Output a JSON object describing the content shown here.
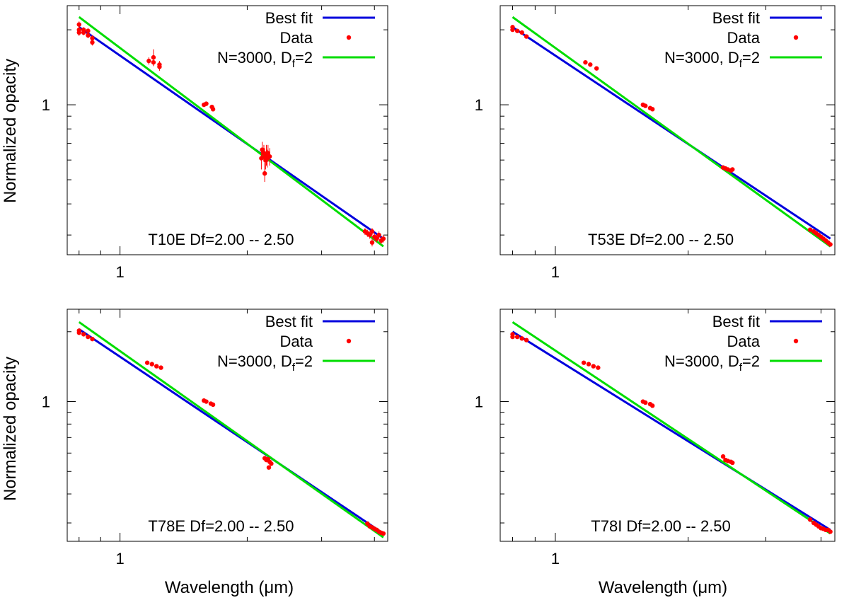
{
  "figure": {
    "ylabel": "Normalized opacity",
    "xlabel": "Wavelength (μm)",
    "colors": {
      "fit": "#0000dd",
      "data": "#ff0000",
      "model": "#00dd00",
      "axis": "#000000"
    }
  },
  "chart_data": [
    {
      "type": "line",
      "title": "T10E",
      "annotation": "T10E Df=2.00 -- 2.50",
      "xscale": "log",
      "yscale": "log",
      "xlim": [
        0.75,
        4.3
      ],
      "ylim": [
        0.25,
        2.5
      ],
      "xticks": [
        1
      ],
      "xtick_labels": [
        "1"
      ],
      "yticks": [
        1
      ],
      "ytick_labels": [
        "1"
      ],
      "xlabel": "",
      "ylabel": "Normalized opacity",
      "legend": {
        "position": "top-right",
        "entries": [
          "Best fit",
          "Data",
          "N=3000, D",
          "f",
          "=2"
        ]
      },
      "series": [
        {
          "name": "Best fit",
          "style": "line",
          "x": [
            0.8,
            4.2
          ],
          "y": [
            2.05,
            0.29
          ]
        },
        {
          "name": "N=3000, Df=2",
          "style": "line",
          "x": [
            0.8,
            4.2
          ],
          "y": [
            2.25,
            0.27
          ]
        },
        {
          "name": "Data",
          "style": "points",
          "x": [
            0.8,
            0.8,
            0.8,
            0.82,
            0.82,
            0.84,
            0.84,
            0.86,
            0.86,
            1.17,
            1.2,
            1.2,
            1.24,
            1.24,
            1.58,
            1.6,
            1.65,
            1.66,
            2.16,
            2.17,
            2.19,
            2.2,
            2.21,
            2.22,
            2.23,
            2.24,
            2.26,
            2.2,
            3.8,
            3.85,
            3.9,
            3.95,
            4.0,
            4.05,
            4.1,
            4.15,
            4.2,
            3.95
          ],
          "y": [
            2.1,
            2.0,
            1.95,
            2.0,
            1.95,
            1.98,
            1.9,
            1.85,
            1.78,
            1.5,
            1.55,
            1.48,
            1.45,
            1.42,
            1.0,
            1.01,
            0.98,
            0.96,
            0.61,
            0.66,
            0.64,
            0.62,
            0.6,
            0.63,
            0.61,
            0.64,
            0.62,
            0.53,
            0.31,
            0.305,
            0.3,
            0.31,
            0.295,
            0.29,
            0.3,
            0.285,
            0.29,
            0.28
          ],
          "yerr": [
            0.06,
            0.06,
            0.06,
            0.05,
            0.05,
            0.05,
            0.05,
            0.05,
            0.05,
            0.05,
            0.12,
            0.05,
            0.05,
            0.05,
            0.02,
            0.02,
            0.02,
            0.02,
            0.06,
            0.05,
            0.05,
            0.05,
            0.05,
            0.06,
            0.05,
            0.05,
            0.05,
            0.04,
            0.01,
            0.01,
            0.01,
            0.01,
            0.01,
            0.01,
            0.01,
            0.01,
            0.01,
            0.01
          ]
        }
      ]
    },
    {
      "type": "line",
      "title": "T53E",
      "annotation": "T53E Df=2.00 -- 2.50",
      "xscale": "log",
      "yscale": "log",
      "xlim": [
        0.75,
        4.3
      ],
      "ylim": [
        0.25,
        2.5
      ],
      "xticks": [
        1
      ],
      "xtick_labels": [
        "1"
      ],
      "yticks": [
        1
      ],
      "ytick_labels": [
        "1"
      ],
      "xlabel": "",
      "ylabel": "",
      "legend": {
        "position": "top-right",
        "entries": [
          "Best fit",
          "Data",
          "N=3000, D",
          "f",
          "=2"
        ]
      },
      "series": [
        {
          "name": "Best fit",
          "style": "line",
          "x": [
            0.8,
            4.2
          ],
          "y": [
            2.05,
            0.29
          ]
        },
        {
          "name": "N=3000, Df=2",
          "style": "line",
          "x": [
            0.8,
            4.2
          ],
          "y": [
            2.25,
            0.27
          ]
        },
        {
          "name": "Data",
          "style": "points",
          "x": [
            0.8,
            0.8,
            0.82,
            0.84,
            0.86,
            1.17,
            1.2,
            1.24,
            1.58,
            1.6,
            1.64,
            1.66,
            2.4,
            2.43,
            2.46,
            2.5,
            2.52,
            3.78,
            3.85,
            3.9,
            3.95,
            4.0,
            4.05,
            4.1,
            4.15,
            4.2
          ],
          "y": [
            2.05,
            2.0,
            1.98,
            1.95,
            1.88,
            1.48,
            1.45,
            1.4,
            1.0,
            0.99,
            0.97,
            0.96,
            0.56,
            0.555,
            0.55,
            0.545,
            0.55,
            0.315,
            0.31,
            0.305,
            0.3,
            0.295,
            0.29,
            0.285,
            0.28,
            0.275
          ],
          "yerr": []
        }
      ]
    },
    {
      "type": "line",
      "title": "T78E",
      "annotation": "T78E Df=2.00 -- 2.50",
      "xscale": "log",
      "yscale": "log",
      "xlim": [
        0.75,
        4.3
      ],
      "ylim": [
        0.25,
        2.5
      ],
      "xticks": [
        1
      ],
      "xtick_labels": [
        "1"
      ],
      "yticks": [
        1
      ],
      "ytick_labels": [
        "1"
      ],
      "xlabel": "Wavelength (μm)",
      "ylabel": "Normalized opacity",
      "legend": {
        "position": "top-right",
        "entries": [
          "Best fit",
          "Data",
          "N=3000, D",
          "f",
          "=2"
        ]
      },
      "series": [
        {
          "name": "Best fit",
          "style": "line",
          "x": [
            0.8,
            4.2
          ],
          "y": [
            2.05,
            0.27
          ]
        },
        {
          "name": "N=3000, Df=2",
          "style": "line",
          "x": [
            0.8,
            4.2
          ],
          "y": [
            2.2,
            0.26
          ]
        },
        {
          "name": "Data",
          "style": "points",
          "x": [
            0.8,
            0.8,
            0.82,
            0.84,
            0.86,
            1.16,
            1.19,
            1.22,
            1.25,
            1.58,
            1.6,
            1.64,
            1.66,
            2.2,
            2.22,
            2.24,
            2.26,
            2.28,
            2.25,
            3.85,
            3.9,
            3.95,
            4.0,
            4.05,
            4.1,
            4.15,
            4.2
          ],
          "y": [
            2.02,
            1.98,
            1.95,
            1.9,
            1.86,
            1.47,
            1.45,
            1.42,
            1.4,
            1.01,
            1.0,
            0.98,
            0.97,
            0.57,
            0.56,
            0.565,
            0.55,
            0.54,
            0.52,
            0.298,
            0.29,
            0.287,
            0.283,
            0.28,
            0.275,
            0.272,
            0.27
          ],
          "yerr": []
        }
      ]
    },
    {
      "type": "line",
      "title": "T78I",
      "annotation": "T78I Df=2.00 -- 2.50",
      "xscale": "log",
      "yscale": "log",
      "xlim": [
        0.75,
        4.3
      ],
      "ylim": [
        0.25,
        2.5
      ],
      "xticks": [
        1
      ],
      "xtick_labels": [
        "1"
      ],
      "yticks": [
        1
      ],
      "ytick_labels": [
        "1"
      ],
      "xlabel": "Wavelength (μm)",
      "ylabel": "",
      "legend": {
        "position": "top-right",
        "entries": [
          "Best fit",
          "Data",
          "N=3000, D",
          "f",
          "=2"
        ]
      },
      "series": [
        {
          "name": "Best fit",
          "style": "line",
          "x": [
            0.8,
            4.2
          ],
          "y": [
            2.0,
            0.28
          ]
        },
        {
          "name": "N=3000, Df=2",
          "style": "line",
          "x": [
            0.8,
            4.2
          ],
          "y": [
            2.2,
            0.27
          ]
        },
        {
          "name": "Data",
          "style": "points",
          "x": [
            0.8,
            0.8,
            0.82,
            0.84,
            0.86,
            1.16,
            1.19,
            1.22,
            1.25,
            1.58,
            1.6,
            1.64,
            1.66,
            2.4,
            2.43,
            2.46,
            2.5,
            2.52,
            3.78,
            3.85,
            3.9,
            3.95,
            4.0,
            4.05,
            4.1,
            4.15,
            4.2
          ],
          "y": [
            1.95,
            1.9,
            1.9,
            1.87,
            1.84,
            1.47,
            1.45,
            1.42,
            1.4,
            1.0,
            0.99,
            0.975,
            0.96,
            0.58,
            0.56,
            0.555,
            0.55,
            0.545,
            0.31,
            0.3,
            0.295,
            0.29,
            0.285,
            0.283,
            0.28,
            0.28,
            0.275
          ],
          "yerr": []
        }
      ]
    }
  ]
}
